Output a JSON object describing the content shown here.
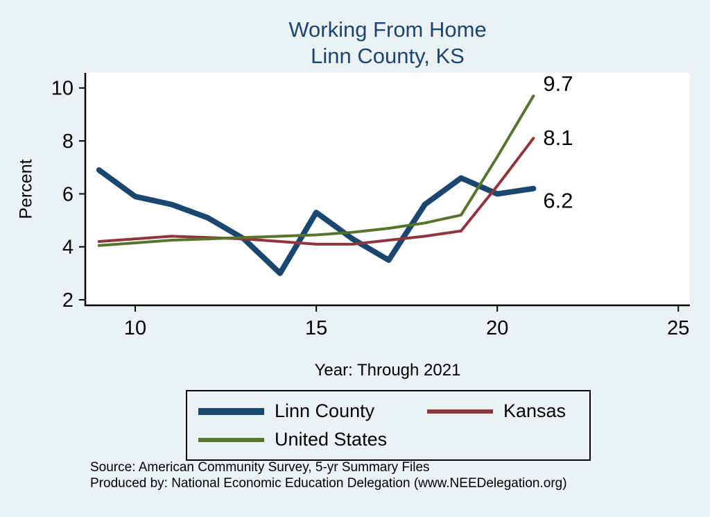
{
  "chart_data": {
    "type": "line",
    "title": "Working From Home",
    "subtitle": "Linn County, KS",
    "xlabel": "Year: Through 2021",
    "ylabel": "Percent",
    "x": [
      9,
      10,
      11,
      12,
      13,
      14,
      15,
      16,
      17,
      18,
      19,
      20,
      21
    ],
    "series": [
      {
        "name": "Linn County",
        "color": "#1a476f",
        "width": 8,
        "values": [
          6.9,
          5.9,
          5.6,
          5.1,
          4.3,
          3.0,
          5.3,
          4.3,
          3.5,
          5.6,
          6.6,
          6.0,
          6.2
        ],
        "end_label": "6.2",
        "label_dy": 18
      },
      {
        "name": "Kansas",
        "color": "#90353b",
        "width": 4,
        "values": [
          4.2,
          4.3,
          4.4,
          4.35,
          4.3,
          4.2,
          4.1,
          4.1,
          4.25,
          4.4,
          4.6,
          6.3,
          8.1
        ],
        "end_label": "8.1",
        "label_dy": 0
      },
      {
        "name": "United States",
        "color": "#55752f",
        "width": 4,
        "values": [
          4.05,
          4.15,
          4.25,
          4.3,
          4.35,
          4.4,
          4.45,
          4.55,
          4.7,
          4.9,
          5.2,
          7.4,
          9.7
        ],
        "end_label": "9.7",
        "label_dy": -17
      }
    ],
    "yticks": [
      2,
      4,
      6,
      8,
      10
    ],
    "xticks": [
      10,
      15,
      20,
      25
    ],
    "xlim": [
      8.62,
      25.32
    ],
    "ylim": [
      1.79,
      10.57
    ],
    "grid": false,
    "legend_position": "bottom"
  },
  "footer": {
    "line1": "Source: American Community Survey, 5-yr Summary Files",
    "line2": "Produced by: National Economic Education Delegation (www.NEEDelegation.org)"
  },
  "colors": {
    "background": "#eaf2f3",
    "plot_bg": "#ffffff",
    "title": "#1e4571",
    "axis": "#000000"
  }
}
